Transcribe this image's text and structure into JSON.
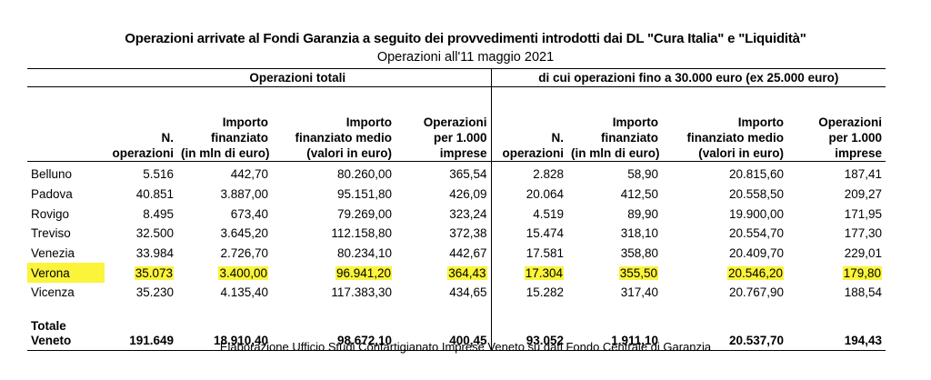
{
  "title": "Operazioni arrivate al Fondi Garanzia a seguito dei provvedimenti introdotti dai DL \"Cura Italia\" e \"Liquidità\"",
  "subtitle": "Operazioni all'11 maggio 2021",
  "footer": "Elaborazione Ufficio Studi Confartigianato Imprese Veneto su dati Fondo Centrale di Garanzia",
  "group_headers": {
    "left": "Operazioni totali",
    "right": "di cui operazioni fino a 30.000 euro (ex 25.000 euro)"
  },
  "column_headers": [
    [
      "N.",
      "operazioni"
    ],
    [
      "Importo",
      "finanziato",
      "(in mln di euro)"
    ],
    [
      "Importo",
      "finanziato medio",
      "(valori in euro)"
    ],
    [
      "Operazioni",
      "per 1.000",
      "imprese"
    ],
    [
      "N.",
      "operazioni"
    ],
    [
      "Importo",
      "finanziato",
      "(in mln di euro)"
    ],
    [
      "Importo",
      "finanziato medio",
      "(valori in euro)"
    ],
    [
      "Operazioni",
      "per 1.000",
      "imprese"
    ]
  ],
  "rows": [
    {
      "name": "Belluno",
      "values": [
        "5.516",
        "442,70",
        "80.260,00",
        "365,54",
        "2.828",
        "58,90",
        "20.815,60",
        "187,41"
      ]
    },
    {
      "name": "Padova",
      "values": [
        "40.851",
        "3.887,00",
        "95.151,80",
        "426,09",
        "20.064",
        "412,50",
        "20.558,50",
        "209,27"
      ]
    },
    {
      "name": "Rovigo",
      "values": [
        "8.495",
        "673,40",
        "79.269,00",
        "323,24",
        "4.519",
        "89,90",
        "19.900,00",
        "171,95"
      ]
    },
    {
      "name": "Treviso",
      "values": [
        "32.500",
        "3.645,20",
        "112.158,80",
        "372,38",
        "15.474",
        "318,10",
        "20.554,70",
        "177,30"
      ]
    },
    {
      "name": "Venezia",
      "values": [
        "33.984",
        "2.726,70",
        "80.234,10",
        "442,67",
        "17.581",
        "358,80",
        "20.409,70",
        "229,01"
      ]
    },
    {
      "name": "Verona",
      "values": [
        "35.073",
        "3.400,00",
        "96.941,20",
        "364,43",
        "17.304",
        "355,50",
        "20.546,20",
        "179,80"
      ],
      "highlight": true
    },
    {
      "name": "Vicenza",
      "values": [
        "35.230",
        "4.135,40",
        "117.383,30",
        "434,65",
        "15.282",
        "317,40",
        "20.767,90",
        "188,54"
      ]
    }
  ],
  "total": {
    "name_lines": [
      "Totale",
      "Veneto"
    ],
    "values": [
      "191.649",
      "18.910,40",
      "98.672,10",
      "400,45",
      "93.052",
      "1.911,10",
      "20.537,70",
      "194,43"
    ]
  },
  "colors": {
    "highlight": "#fbf43a",
    "rule": "#000000"
  }
}
